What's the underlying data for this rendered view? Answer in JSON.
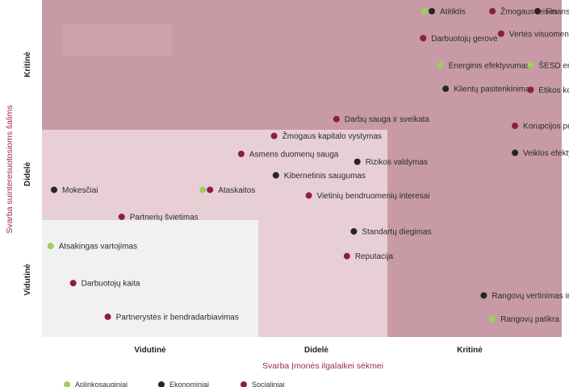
{
  "chart_data": {
    "type": "scatter",
    "title": "",
    "xlabel": "Svarba Įmonės ilgalaikei sėkmei",
    "ylabel": "Svarba suinteresuotosioms šalims",
    "x_categories": [
      "Vidutinė",
      "Didelė",
      "Kritinė"
    ],
    "y_categories": [
      "Vidutinė",
      "Didelė",
      "Kritinė"
    ],
    "series_colors": {
      "environmental": "#9bd15a",
      "economic": "#262626",
      "social": "#8c1d44"
    },
    "zone_colors": {
      "medium": "#f1f1f1",
      "high": "#e8cfd6",
      "critical": "#c79aa6"
    },
    "legend": {
      "position": "bottom-left",
      "entries": [
        {
          "series": "environmental",
          "label": "Aplinkosauginiai"
        },
        {
          "series": "economic",
          "label": "Ekonominiai"
        },
        {
          "series": "social",
          "label": "Socialiniai"
        }
      ]
    },
    "points": [
      {
        "label": "Atitiktis",
        "series": [
          "environmental",
          "economic"
        ],
        "x": 2.25,
        "y": 2.9
      },
      {
        "label": "Žmogaus teisės",
        "series": [
          "social"
        ],
        "x": 2.6,
        "y": 2.9
      },
      {
        "label": "Finansinė grąža",
        "series": [
          "economic"
        ],
        "x": 2.86,
        "y": 2.9
      },
      {
        "label": "Darbuotojų gerovė",
        "series": [
          "social"
        ],
        "x": 2.2,
        "y": 2.66
      },
      {
        "label": "Vertės visuomenei kūrimas",
        "series": [
          "social"
        ],
        "x": 2.65,
        "y": 2.7
      },
      {
        "label": "Energinis efektyvumas",
        "series": [
          "environmental"
        ],
        "x": 2.3,
        "y": 2.42
      },
      {
        "label": "ŠESD emisijos",
        "series": [
          "environmental"
        ],
        "x": 2.82,
        "y": 2.42
      },
      {
        "label": "Klientų pasitenkinimas",
        "series": [
          "economic"
        ],
        "x": 2.33,
        "y": 2.21
      },
      {
        "label": "Etikos kodeksas",
        "series": [
          "social"
        ],
        "x": 2.82,
        "y": 2.2
      },
      {
        "label": "Darbų sauga ir sveikata",
        "series": [
          "social"
        ],
        "x": 1.7,
        "y": 1.94
      },
      {
        "label": "Korupcijos prevencija",
        "series": [
          "social"
        ],
        "x": 2.73,
        "y": 1.88
      },
      {
        "label": "Žmogaus kapitalo vystymas",
        "series": [
          "social"
        ],
        "x": 1.34,
        "y": 1.79
      },
      {
        "label": "Asmens duomenų sauga",
        "series": [
          "social"
        ],
        "x": 1.15,
        "y": 1.63
      },
      {
        "label": "Veiklos efektyvumas",
        "series": [
          "economic"
        ],
        "x": 2.73,
        "y": 1.64
      },
      {
        "label": "Rizikos valdymas",
        "series": [
          "economic"
        ],
        "x": 1.82,
        "y": 1.56
      },
      {
        "label": "Kibernetinis saugumas",
        "series": [
          "economic"
        ],
        "x": 1.35,
        "y": 1.44
      },
      {
        "label": "Mokesčiai",
        "series": [
          "economic"
        ],
        "x": 0.07,
        "y": 1.31
      },
      {
        "label": "Ataskaitos",
        "series": [
          "environmental",
          "social"
        ],
        "x": 0.97,
        "y": 1.31
      },
      {
        "label": "Vietinių bendruomenių interesai",
        "series": [
          "social"
        ],
        "x": 1.54,
        "y": 1.26
      },
      {
        "label": "Partnerių švietimas",
        "series": [
          "social"
        ],
        "x": 0.46,
        "y": 1.07
      },
      {
        "label": "Standartų diegimas",
        "series": [
          "economic"
        ],
        "x": 1.8,
        "y": 0.94
      },
      {
        "label": "Atsakingas vartojimas",
        "series": [
          "environmental"
        ],
        "x": 0.05,
        "y": 0.81
      },
      {
        "label": "Reputacija",
        "series": [
          "social"
        ],
        "x": 1.76,
        "y": 0.72
      },
      {
        "label": "Darbuotojų kaita",
        "series": [
          "social"
        ],
        "x": 0.18,
        "y": 0.48
      },
      {
        "label": "Rangovų vertinimas ir patikra",
        "series": [
          "economic"
        ],
        "x": 2.55,
        "y": 0.37
      },
      {
        "label": "Partnerystės ir bendradarbiavimas",
        "series": [
          "social"
        ],
        "x": 0.38,
        "y": 0.18
      },
      {
        "label": "Rangovų patikra",
        "series": [
          "environmental"
        ],
        "x": 2.6,
        "y": 0.16
      }
    ]
  }
}
